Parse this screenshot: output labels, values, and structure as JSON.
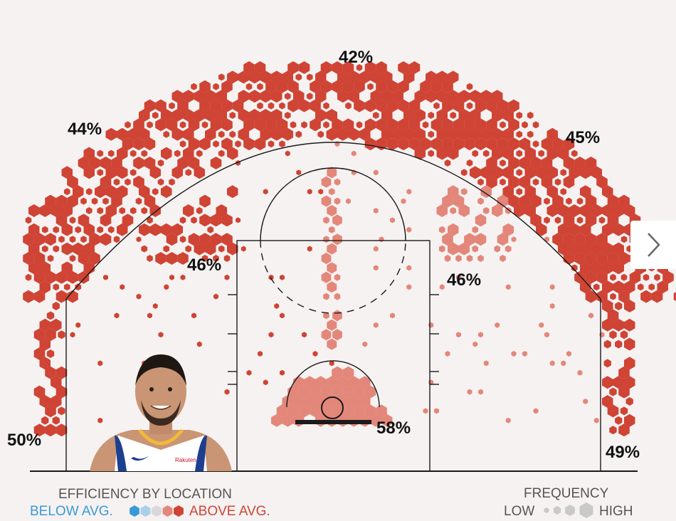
{
  "chart_data": {
    "type": "shot-chart",
    "zones": [
      {
        "label": "42%"
      },
      {
        "label": "44%"
      },
      {
        "label": "45%"
      },
      {
        "label": "46%"
      },
      {
        "label": "46%"
      },
      {
        "label": "50%"
      },
      {
        "label": "49%"
      },
      {
        "label": "58%"
      }
    ],
    "legend": {
      "efficiency_title": "EFFICIENCY BY LOCATION",
      "below": "BELOW AVG.",
      "above": "ABOVE AVG.",
      "frequency_title": "FREQUENCY",
      "low": "LOW",
      "high": "HIGH"
    },
    "colors": {
      "above_strong": "#cf4434",
      "above_light": "#e3877a",
      "below_strong": "#3a9ad9",
      "below_light": "#a9cfe9",
      "neutral": "#d8d8d8",
      "frequency": "#c9c9c9"
    }
  },
  "nav": {
    "next_icon": "chevron-right-icon"
  },
  "player": {
    "jersey_text": "Rakuten"
  }
}
